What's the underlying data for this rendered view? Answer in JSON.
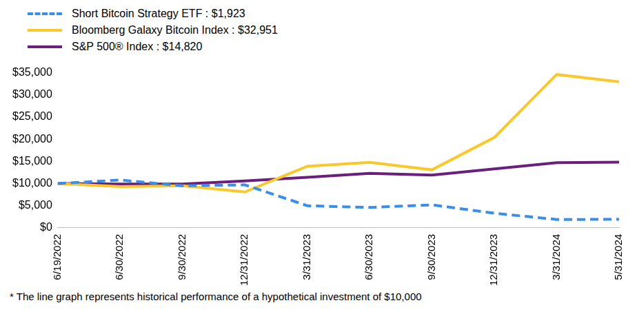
{
  "chart_data": {
    "type": "line",
    "categories": [
      "6/19/2022",
      "6/30/2022",
      "9/30/2022",
      "12/31/2022",
      "3/31/2023",
      "6/30/2023",
      "9/30/2023",
      "12/31/2023",
      "3/31/2024",
      "5/31/2024"
    ],
    "series": [
      {
        "name": "Short Bitcoin Strategy ETF : $1,923",
        "color": "#3a8ee8",
        "line_style": "dashed",
        "values": [
          10000,
          10800,
          9500,
          9700,
          5000,
          4600,
          5200,
          3300,
          1900,
          1923
        ]
      },
      {
        "name": "Bloomberg Galaxy Bitcoin Index : $32,951",
        "color": "#fbc82c",
        "line_style": "solid",
        "values": [
          10000,
          9300,
          9500,
          8100,
          13900,
          14800,
          13100,
          20400,
          34600,
          32951
        ]
      },
      {
        "name": "S&P 500® Index : $14,820",
        "color": "#6a1f7c",
        "line_style": "solid",
        "values": [
          10000,
          9900,
          9900,
          10600,
          11400,
          12300,
          11900,
          13300,
          14700,
          14820
        ]
      }
    ],
    "ylim": [
      0,
      35000
    ],
    "yticks": [
      {
        "value": 0,
        "label": "$0"
      },
      {
        "value": 5000,
        "label": "$5,000"
      },
      {
        "value": 10000,
        "label": "$10,000"
      },
      {
        "value": 15000,
        "label": "$15,000"
      },
      {
        "value": 20000,
        "label": "$20,000"
      },
      {
        "value": 25000,
        "label": "$25,000"
      },
      {
        "value": 30000,
        "label": "$30,000"
      },
      {
        "value": 35000,
        "label": "$35,000"
      }
    ],
    "grid": false,
    "legend": "upper left",
    "footnote": "*   The line graph represents historical performance of a hypothetical investment of $10,000"
  }
}
